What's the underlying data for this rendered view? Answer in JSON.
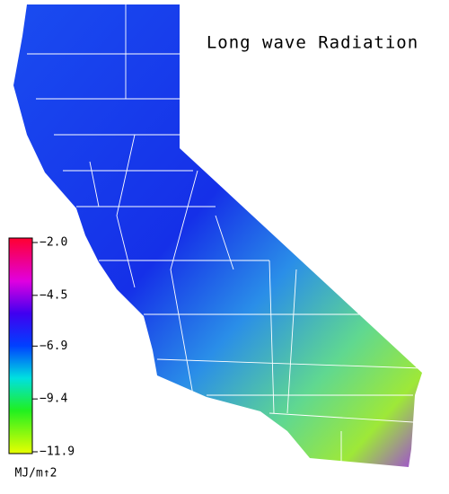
{
  "title": "Long wave Radiation",
  "legend": {
    "ticks": [
      {
        "value": -2.0,
        "label": "−2.0"
      },
      {
        "value": -4.5,
        "label": "−4.5"
      },
      {
        "value": -6.9,
        "label": "−6.9"
      },
      {
        "value": -9.4,
        "label": "−9.4"
      },
      {
        "value": -11.9,
        "label": "−11.9"
      }
    ],
    "unit": "MJ/m↑2"
  }
}
